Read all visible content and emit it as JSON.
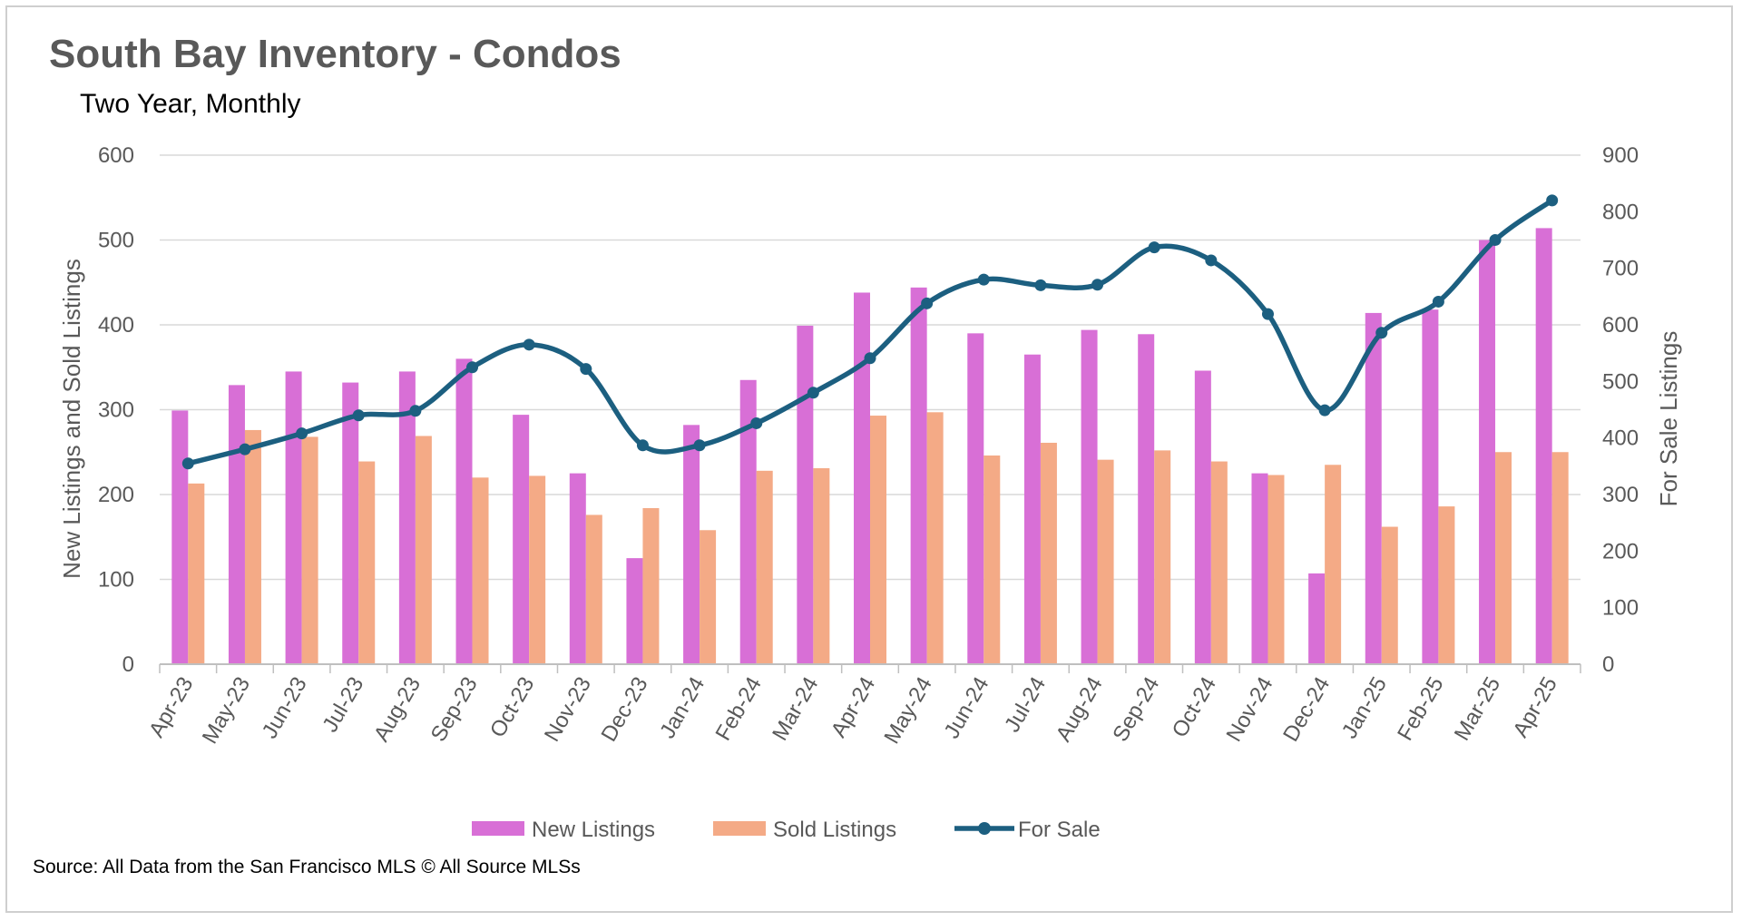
{
  "chart_data": {
    "type": "bar",
    "title": "South Bay Inventory - Condos",
    "subtitle": "Two Year, Monthly",
    "ylabel_left": "New Listings and Sold Listings",
    "ylabel_right": "For Sale Listings",
    "ylim_left": [
      0,
      600
    ],
    "ylim_right": [
      0,
      900
    ],
    "yticks_left": [
      "0",
      "100",
      "200",
      "300",
      "400",
      "500",
      "600"
    ],
    "yticks_right": [
      "0",
      "100",
      "200",
      "300",
      "400",
      "500",
      "600",
      "700",
      "800",
      "900"
    ],
    "grid": true,
    "legend_position": "bottom",
    "categories": [
      "Apr-23",
      "May-23",
      "Jun-23",
      "Jul-23",
      "Aug-23",
      "Sep-23",
      "Oct-23",
      "Nov-23",
      "Dec-23",
      "Jan-24",
      "Feb-24",
      "Mar-24",
      "Apr-24",
      "May-24",
      "Jun-24",
      "Jul-24",
      "Aug-24",
      "Sep-24",
      "Oct-24",
      "Nov-24",
      "Dec-24",
      "Jan-25",
      "Feb-25",
      "Mar-25",
      "Apr-25"
    ],
    "series": [
      {
        "name": "New Listings",
        "type": "bar",
        "axis": "left",
        "color": "#d86fd6",
        "values": [
          299,
          329,
          345,
          332,
          345,
          360,
          294,
          225,
          125,
          282,
          335,
          399,
          438,
          444,
          390,
          365,
          394,
          389,
          346,
          225,
          107,
          414,
          418,
          500,
          514
        ]
      },
      {
        "name": "Sold Listings",
        "type": "bar",
        "axis": "left",
        "color": "#f4aa86",
        "values": [
          213,
          276,
          268,
          239,
          269,
          220,
          222,
          176,
          184,
          158,
          228,
          231,
          293,
          297,
          246,
          261,
          241,
          252,
          239,
          223,
          235,
          162,
          186,
          250,
          250
        ]
      },
      {
        "name": "For Sale",
        "type": "line",
        "axis": "right",
        "color": "#1c5f80",
        "values": [
          355,
          380,
          408,
          440,
          448,
          525,
          565,
          522,
          387,
          387,
          426,
          480,
          541,
          638,
          680,
          670,
          671,
          737,
          714,
          619,
          449,
          586,
          641,
          750,
          820
        ]
      }
    ]
  },
  "footer": {
    "source": "Source: All Data from the San Francisco MLS © All Source MLSs"
  }
}
